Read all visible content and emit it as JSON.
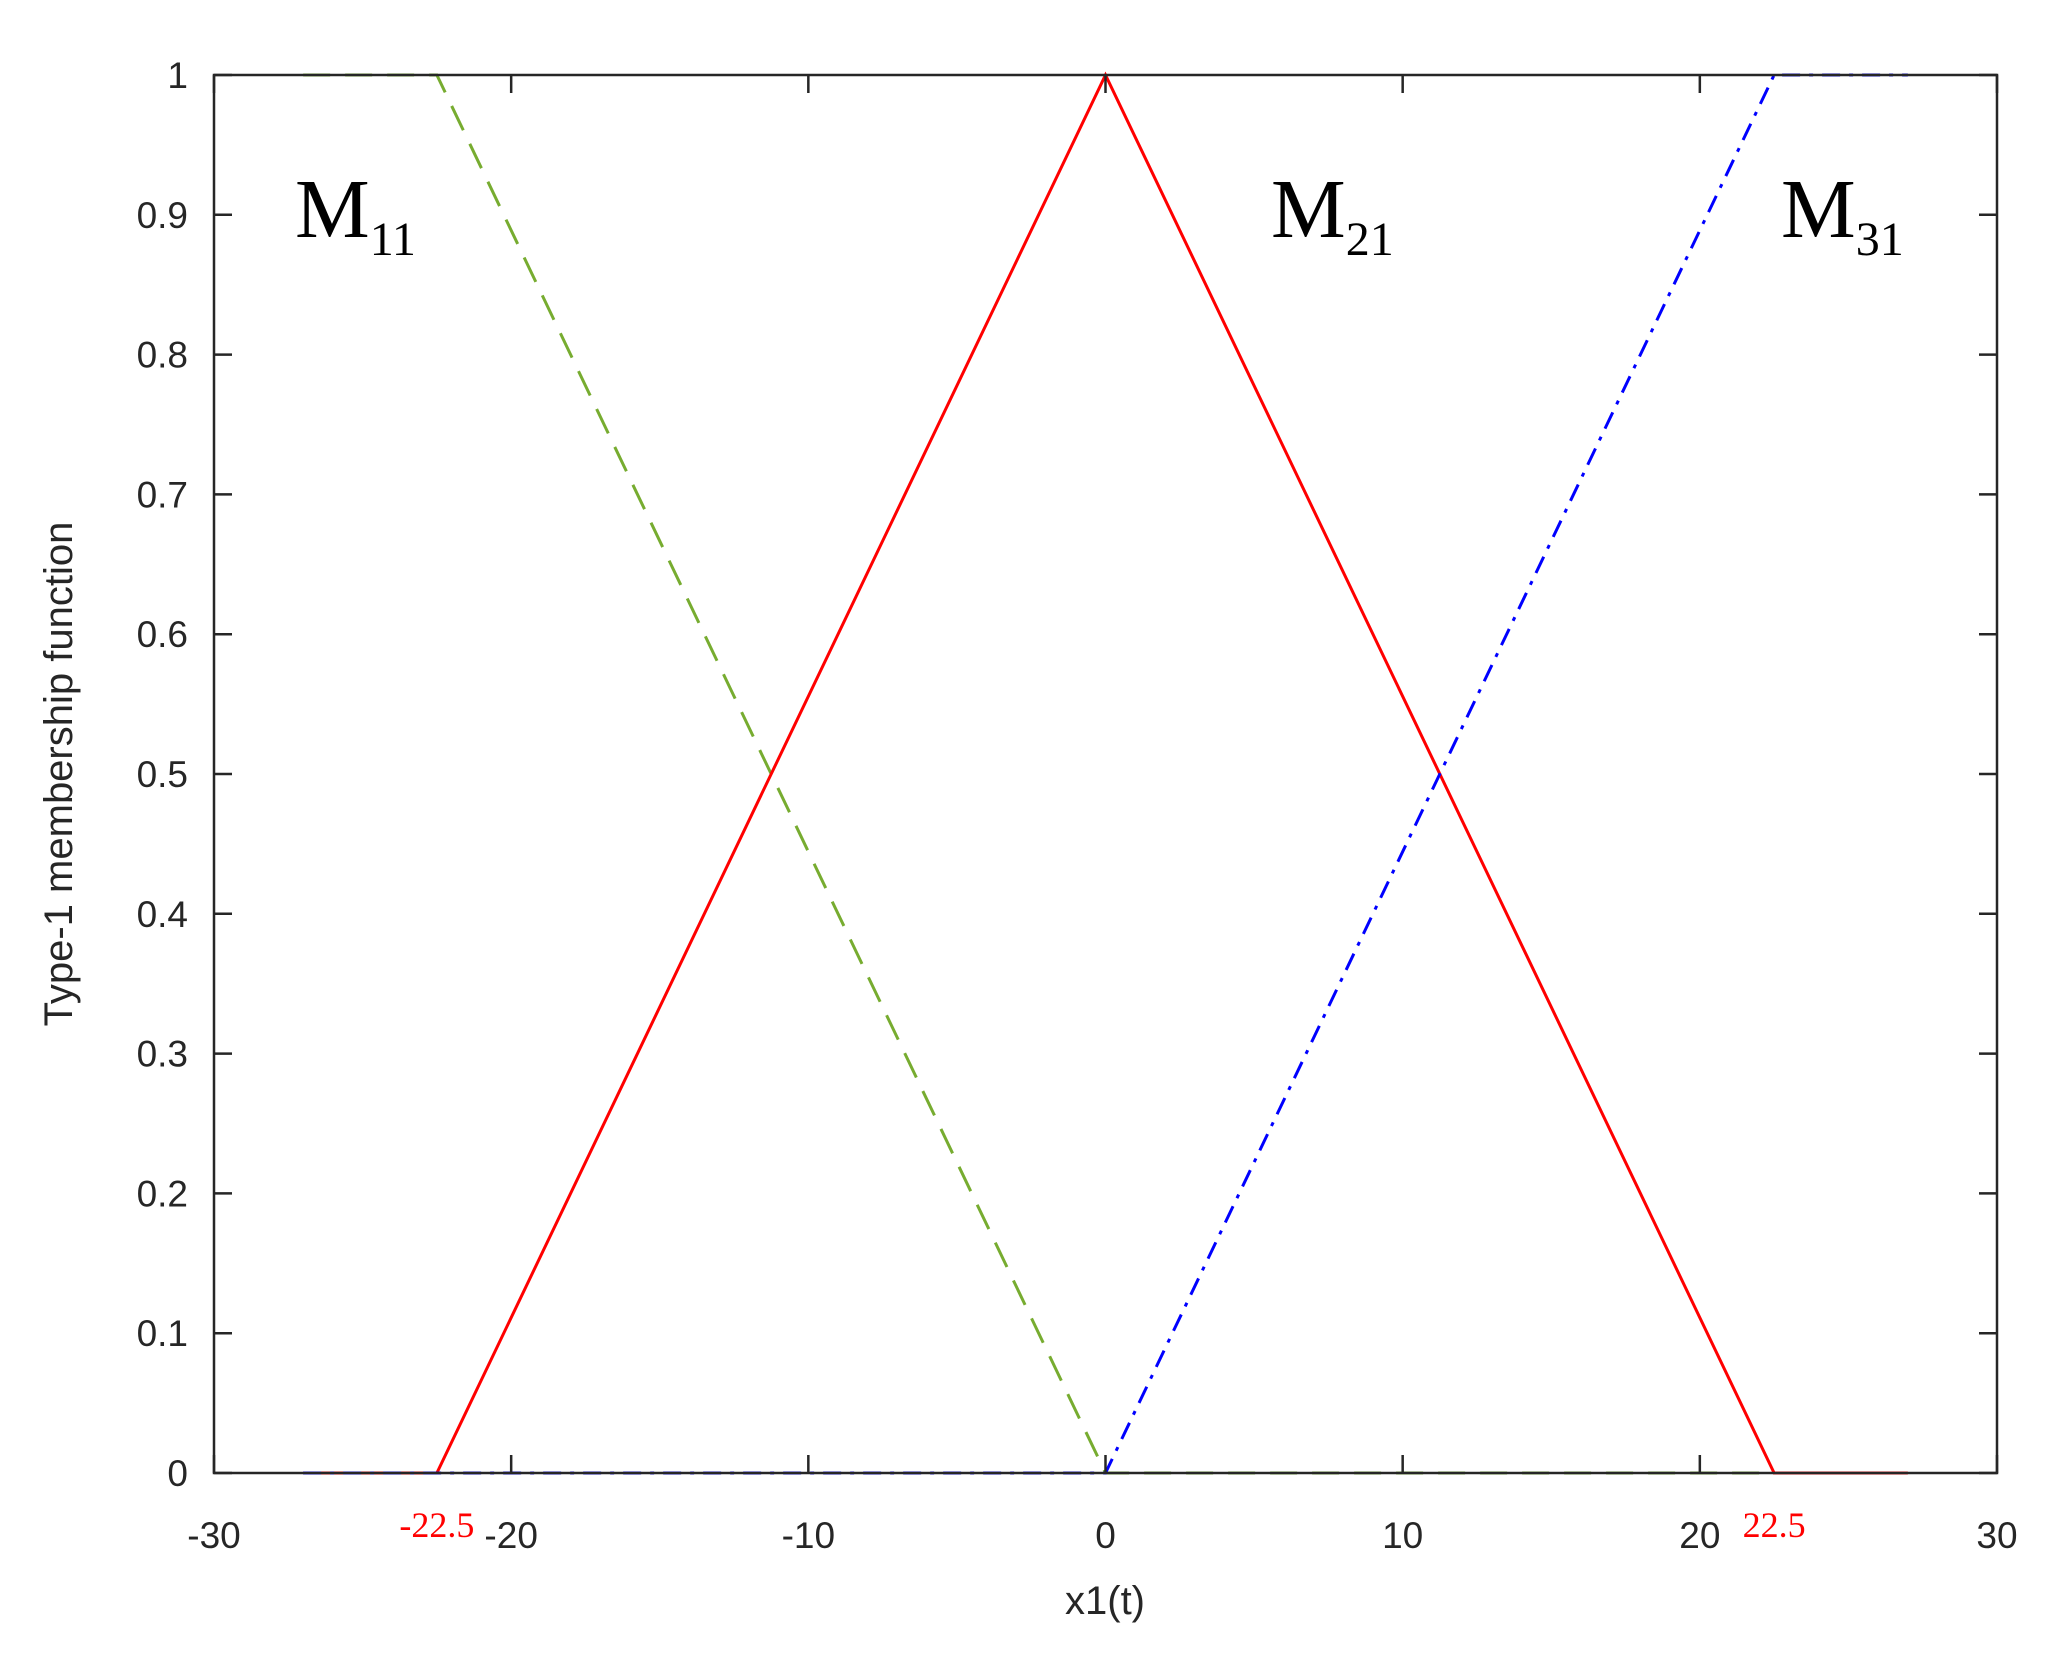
{
  "chart_data": {
    "type": "line",
    "x_label": "x1(t)",
    "y_label": "Type-1 membership function",
    "xlim": [
      -30,
      30
    ],
    "xticks": [
      -30,
      -20,
      -10,
      0,
      10,
      20,
      30
    ],
    "ylim": [
      0,
      1
    ],
    "yticks": [
      0,
      0.1,
      0.2,
      0.3,
      0.4,
      0.5,
      0.6,
      0.7,
      0.8,
      0.9,
      1
    ],
    "extra_xticks": [
      -22.5,
      22.5
    ],
    "extra_xtick_color": "#ff0000",
    "grid": false,
    "series": [
      {
        "name": "M11",
        "color": "#77ac30",
        "dash": "dashed",
        "x": [
          -27,
          -22.5,
          0,
          22.5
        ],
        "values": [
          1,
          1,
          0,
          0
        ]
      },
      {
        "name": "M21",
        "color": "#ff0000",
        "dash": "solid",
        "x": [
          -27,
          -22.5,
          0,
          22.5,
          27
        ],
        "values": [
          0,
          0,
          1,
          0,
          0
        ]
      },
      {
        "name": "M31",
        "color": "#0000ff",
        "dash": "dashdot",
        "x": [
          -27,
          0,
          22.5,
          27
        ],
        "values": [
          0,
          0,
          1,
          1
        ]
      }
    ],
    "annotations": [
      {
        "main": "M",
        "sub": "11"
      },
      {
        "main": "M",
        "sub": "21"
      },
      {
        "main": "M",
        "sub": "31"
      }
    ]
  }
}
